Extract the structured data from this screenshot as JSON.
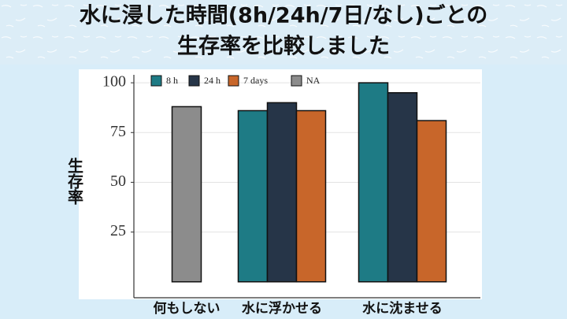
{
  "chart_data": {
    "type": "bar",
    "title": [
      "水に浸した時間(8h/24h/7日/なし)ごとの",
      "生存率を比較しました"
    ],
    "y_label": "生存率",
    "categories": [
      "何もしない",
      "水に浮かせる",
      "水に沈ませる"
    ],
    "series": [
      {
        "name": "8 h",
        "color": "#1e7b85",
        "values": [
          null,
          86,
          100
        ]
      },
      {
        "name": "24 h",
        "color": "#263548",
        "values": [
          null,
          90,
          95
        ]
      },
      {
        "name": "7 days",
        "color": "#c8662a",
        "values": [
          null,
          86,
          81
        ]
      },
      {
        "name": "NA",
        "color": "#8c8c8c",
        "values": [
          88,
          null,
          null
        ]
      }
    ],
    "ylim": [
      -8,
      104
    ],
    "yticks": [
      25,
      50,
      75,
      100
    ],
    "grid": true,
    "legend": "top"
  }
}
